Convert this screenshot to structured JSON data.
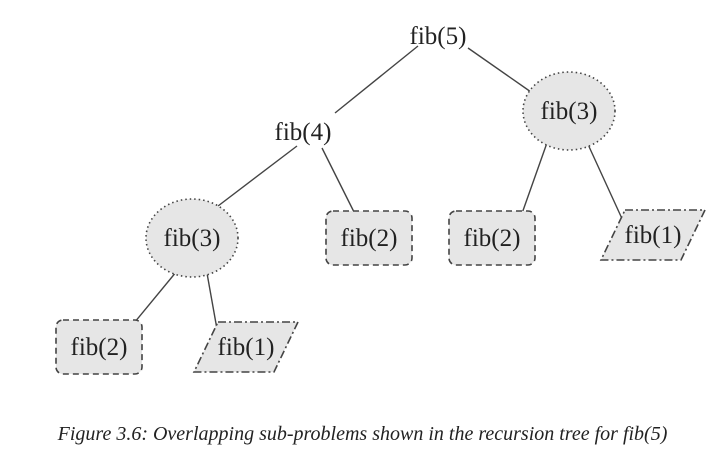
{
  "diagram": {
    "nodes": [
      {
        "id": "n5",
        "label": "fib(5)",
        "style": "plain"
      },
      {
        "id": "n4",
        "label": "fib(4)",
        "style": "plain"
      },
      {
        "id": "n3r",
        "label": "fib(3)",
        "style": "ellipse-dotted"
      },
      {
        "id": "n3l",
        "label": "fib(3)",
        "style": "ellipse-dotted"
      },
      {
        "id": "n2m",
        "label": "fib(2)",
        "style": "rounded-dashed"
      },
      {
        "id": "n2r",
        "label": "fib(2)",
        "style": "rounded-dashed"
      },
      {
        "id": "n1r",
        "label": "fib(1)",
        "style": "parallelogram-dashdot"
      },
      {
        "id": "n2l",
        "label": "fib(2)",
        "style": "rounded-dashed"
      },
      {
        "id": "n1l",
        "label": "fib(1)",
        "style": "parallelogram-dashdot"
      }
    ],
    "edges": [
      [
        "n5",
        "n4"
      ],
      [
        "n5",
        "n3r"
      ],
      [
        "n4",
        "n3l"
      ],
      [
        "n4",
        "n2m"
      ],
      [
        "n3r",
        "n2r"
      ],
      [
        "n3r",
        "n1r"
      ],
      [
        "n3l",
        "n2l"
      ],
      [
        "n3l",
        "n1l"
      ]
    ]
  },
  "caption": "Figure 3.6: Overlapping sub-problems shown in the recursion tree for fib(5)",
  "colors": {
    "shape_fill": "#e6e6e6",
    "stroke": "#444444",
    "text": "#222222"
  }
}
